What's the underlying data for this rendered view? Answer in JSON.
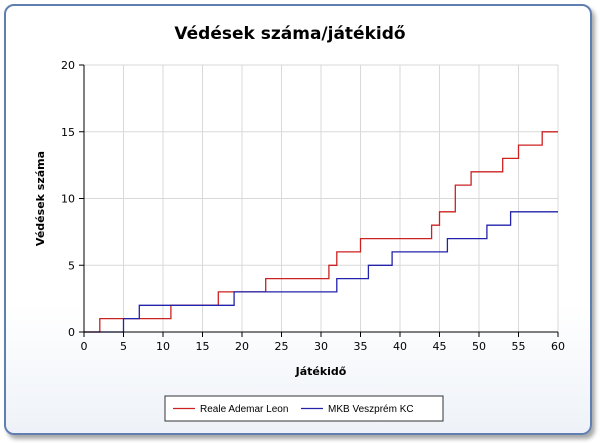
{
  "chart_data": {
    "type": "line",
    "step": true,
    "title": "Védések száma/játékidő",
    "xlabel": "Játékidő",
    "ylabel": "Védések száma",
    "xlim": [
      0,
      60
    ],
    "ylim": [
      0,
      20
    ],
    "x_ticks": [
      0,
      5,
      10,
      15,
      20,
      25,
      30,
      35,
      40,
      45,
      50,
      55,
      60
    ],
    "y_ticks": [
      0,
      5,
      10,
      15,
      20
    ],
    "grid": true,
    "legend_position": "bottom-center",
    "series": [
      {
        "name": "Reale Ademar Leon",
        "color": "#cc2222",
        "points": [
          [
            0,
            0
          ],
          [
            2,
            0
          ],
          [
            2,
            1
          ],
          [
            7,
            1
          ],
          [
            11,
            1
          ],
          [
            11,
            2
          ],
          [
            17,
            2
          ],
          [
            17,
            3
          ],
          [
            19,
            3
          ],
          [
            19,
            3
          ],
          [
            23,
            3
          ],
          [
            23,
            4
          ],
          [
            31,
            4
          ],
          [
            31,
            5
          ],
          [
            32,
            5
          ],
          [
            32,
            6
          ],
          [
            35,
            6
          ],
          [
            35,
            7
          ],
          [
            44,
            7
          ],
          [
            44,
            8
          ],
          [
            45,
            8
          ],
          [
            45,
            9
          ],
          [
            47,
            9
          ],
          [
            47,
            11
          ],
          [
            49,
            11
          ],
          [
            49,
            12
          ],
          [
            53,
            12
          ],
          [
            53,
            13
          ],
          [
            55,
            13
          ],
          [
            55,
            14
          ],
          [
            58,
            14
          ],
          [
            58,
            15
          ],
          [
            60,
            15
          ]
        ]
      },
      {
        "name": "MKB Veszprém KC",
        "color": "#2222aa",
        "points": [
          [
            0,
            0
          ],
          [
            5,
            0
          ],
          [
            5,
            1
          ],
          [
            7,
            1
          ],
          [
            7,
            2
          ],
          [
            19,
            2
          ],
          [
            19,
            3
          ],
          [
            32,
            3
          ],
          [
            32,
            4
          ],
          [
            36,
            4
          ],
          [
            36,
            5
          ],
          [
            39,
            5
          ],
          [
            39,
            6
          ],
          [
            46,
            6
          ],
          [
            46,
            7
          ],
          [
            51,
            7
          ],
          [
            51,
            8
          ],
          [
            54,
            8
          ],
          [
            54,
            9
          ],
          [
            60,
            9
          ]
        ]
      }
    ]
  }
}
